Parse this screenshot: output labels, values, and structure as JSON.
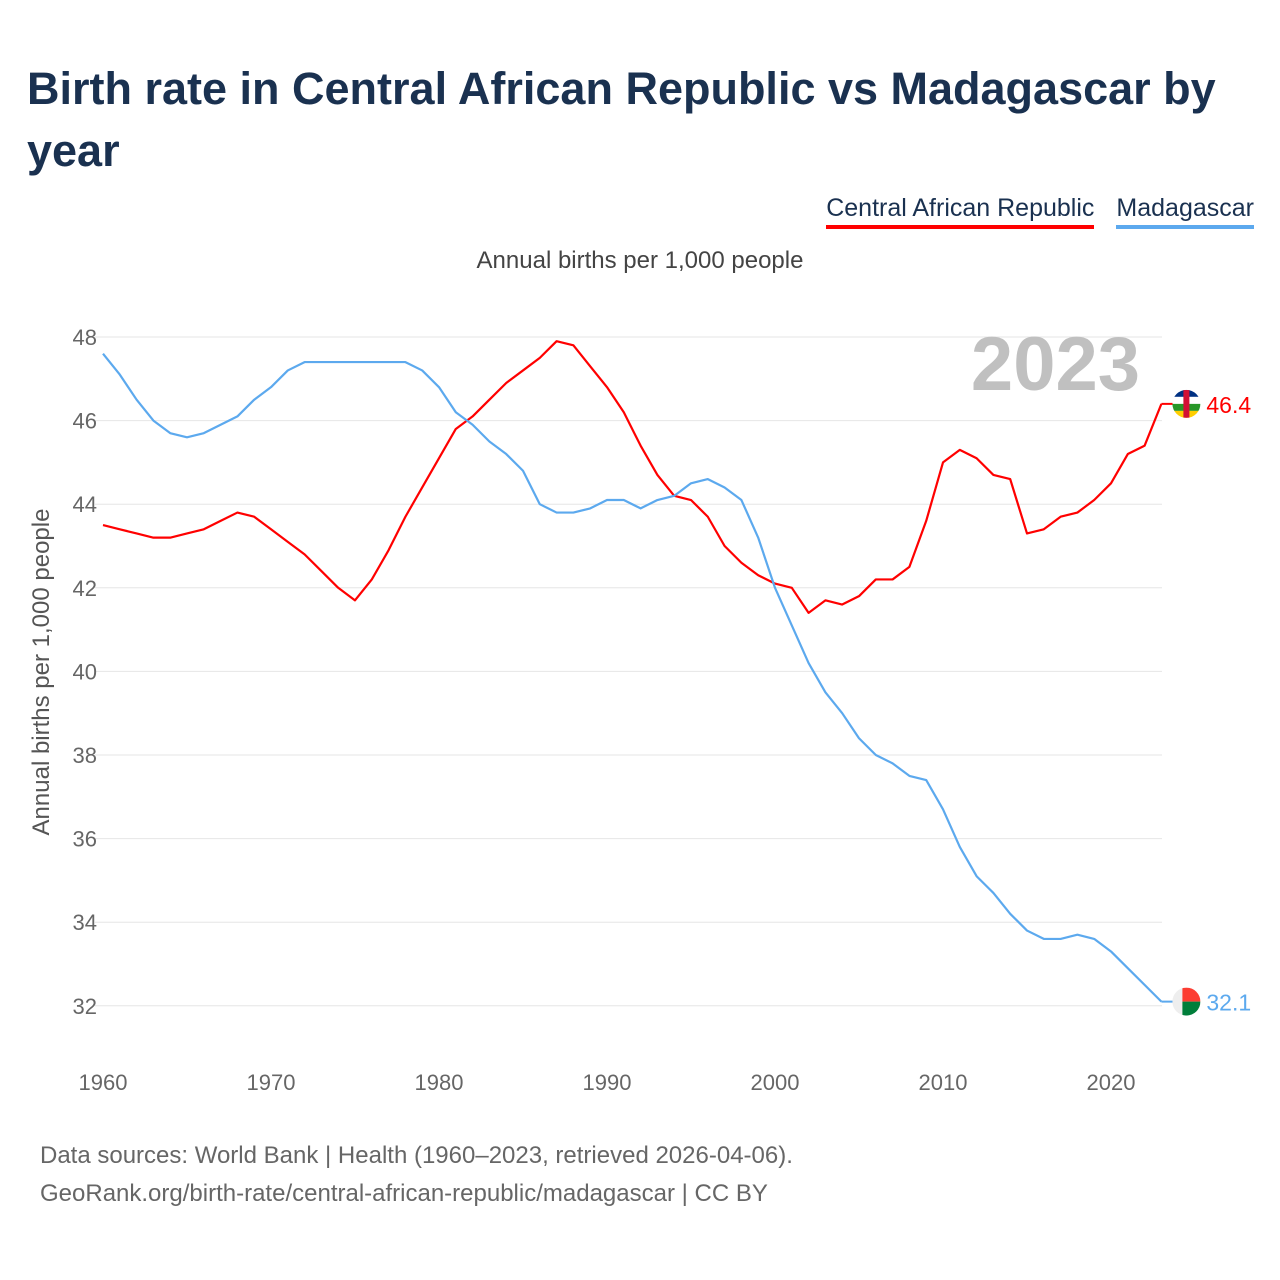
{
  "title": "Birth rate in Central African Republic vs Madagascar by year",
  "subtitle": "Annual births per 1,000 people",
  "year_watermark": "2023",
  "footer": {
    "line1": "Data sources: World Bank | Health (1960–2023, retrieved 2026-04-06).",
    "line2": "GeoRank.org/birth-rate/central-african-republic/madagascar | CC BY"
  },
  "chart_data": {
    "type": "line",
    "title": "Birth rate in Central African Republic vs Madagascar by year",
    "xlabel": "",
    "ylabel": "Annual births per 1,000 people",
    "xlim": [
      1960,
      2023
    ],
    "ylim": [
      31,
      48.3
    ],
    "xticks": [
      1960,
      1970,
      1980,
      1990,
      2000,
      2010,
      2020
    ],
    "yticks": [
      32,
      34,
      36,
      38,
      40,
      42,
      44,
      46,
      48
    ],
    "grid": true,
    "legend_position": "top-right",
    "x_start": 1960,
    "series": [
      {
        "name": "Central African Republic",
        "color": "#ff0000",
        "end_label": "46.4",
        "flag": "central-african-republic-flag",
        "values": [
          43.5,
          43.4,
          43.3,
          43.2,
          43.2,
          43.3,
          43.4,
          43.6,
          43.8,
          43.7,
          43.4,
          43.1,
          42.8,
          42.4,
          42.0,
          41.7,
          42.2,
          42.9,
          43.7,
          44.4,
          45.1,
          45.8,
          46.1,
          46.5,
          46.9,
          47.2,
          47.5,
          47.9,
          47.8,
          47.3,
          46.8,
          46.2,
          45.4,
          44.7,
          44.2,
          44.1,
          43.7,
          43.0,
          42.6,
          42.3,
          42.1,
          42.0,
          41.4,
          41.7,
          41.6,
          41.8,
          42.2,
          42.2,
          42.5,
          43.6,
          45.0,
          45.3,
          45.1,
          44.7,
          44.6,
          43.3,
          43.4,
          43.7,
          43.8,
          44.1,
          44.5,
          45.2,
          45.4,
          46.4
        ]
      },
      {
        "name": "Madagascar",
        "color": "#5ca9ee",
        "end_label": "32.1",
        "flag": "madagascar-flag",
        "values": [
          47.6,
          47.1,
          46.5,
          46.0,
          45.7,
          45.6,
          45.7,
          45.9,
          46.1,
          46.5,
          46.8,
          47.2,
          47.4,
          47.4,
          47.4,
          47.4,
          47.4,
          47.4,
          47.4,
          47.2,
          46.8,
          46.2,
          45.9,
          45.5,
          45.2,
          44.8,
          44.0,
          43.8,
          43.8,
          43.9,
          44.1,
          44.1,
          43.9,
          44.1,
          44.2,
          44.5,
          44.6,
          44.4,
          44.1,
          43.2,
          42.0,
          41.1,
          40.2,
          39.5,
          39.0,
          38.4,
          38.0,
          37.8,
          37.5,
          37.4,
          36.7,
          35.8,
          35.1,
          34.7,
          34.2,
          33.8,
          33.6,
          33.6,
          33.7,
          33.6,
          33.3,
          32.9,
          32.5,
          32.1
        ]
      }
    ]
  }
}
